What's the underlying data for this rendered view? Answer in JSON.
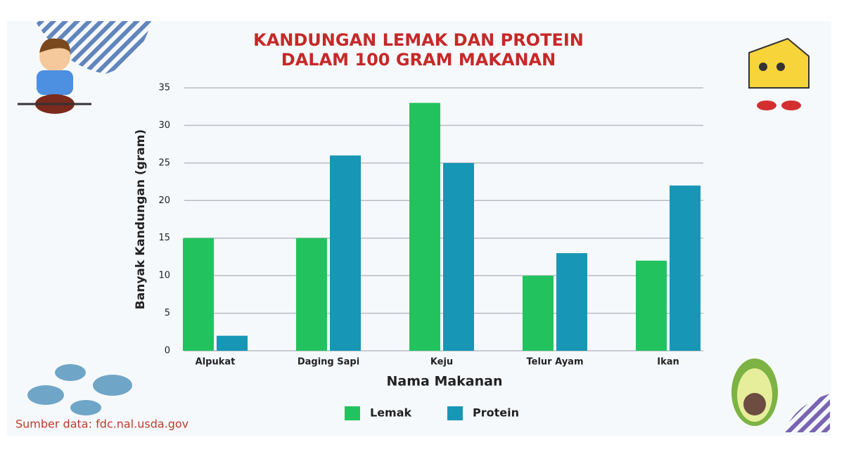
{
  "chart_data": {
    "type": "bar",
    "title": [
      "KANDUNGAN LEMAK DAN PROTEIN",
      "DALAM 100 GRAM MAKANAN"
    ],
    "x_label": "Nama Makanan",
    "y_label": "Banyak Kandungan (gram)",
    "categories": [
      "Alpukat",
      "Daging Sapi",
      "Keju",
      "Telur Ayam",
      "Ikan"
    ],
    "series": [
      {
        "name": "Lemak",
        "color": "#22c35e",
        "values": [
          15,
          15,
          33,
          10,
          12
        ]
      },
      {
        "name": "Protein",
        "color": "#1896b6",
        "values": [
          2,
          26,
          25,
          13,
          22
        ]
      }
    ],
    "ylim": [
      0,
      35
    ],
    "yticks": [
      0,
      5,
      10,
      15,
      20,
      25,
      30,
      35
    ],
    "grid": true,
    "legend": "bottom",
    "source": "Sumber data:  fdc.nal.usda.gov"
  }
}
